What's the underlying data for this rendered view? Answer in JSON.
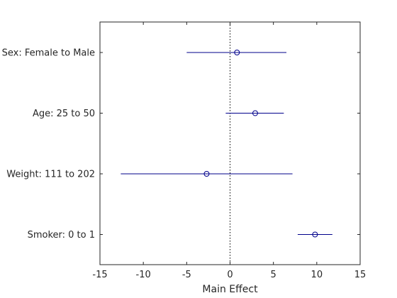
{
  "chart_data": {
    "type": "scatter",
    "title": "",
    "xlabel": "Main Effect",
    "ylabel": "",
    "xlim": [
      -15,
      15
    ],
    "xticks": [
      -15,
      -10,
      -5,
      0,
      5,
      10,
      15
    ],
    "grid": false,
    "reference_line": {
      "x": 0,
      "style": "dotted"
    },
    "colors": {
      "interval": "#00008b",
      "marker": "#00008b",
      "axis": "#262626",
      "reference": "#000000"
    },
    "effects": [
      {
        "label": "Sex: Female to Male",
        "estimate": 0.8,
        "lower": -5.0,
        "upper": 6.5
      },
      {
        "label": "Age: 25 to 50",
        "estimate": 2.9,
        "lower": -0.5,
        "upper": 6.2
      },
      {
        "label": "Weight: 111 to 202",
        "estimate": -2.7,
        "lower": -12.6,
        "upper": 7.2
      },
      {
        "label": "Smoker: 0 to 1",
        "estimate": 9.8,
        "lower": 7.8,
        "upper": 11.8
      }
    ]
  }
}
